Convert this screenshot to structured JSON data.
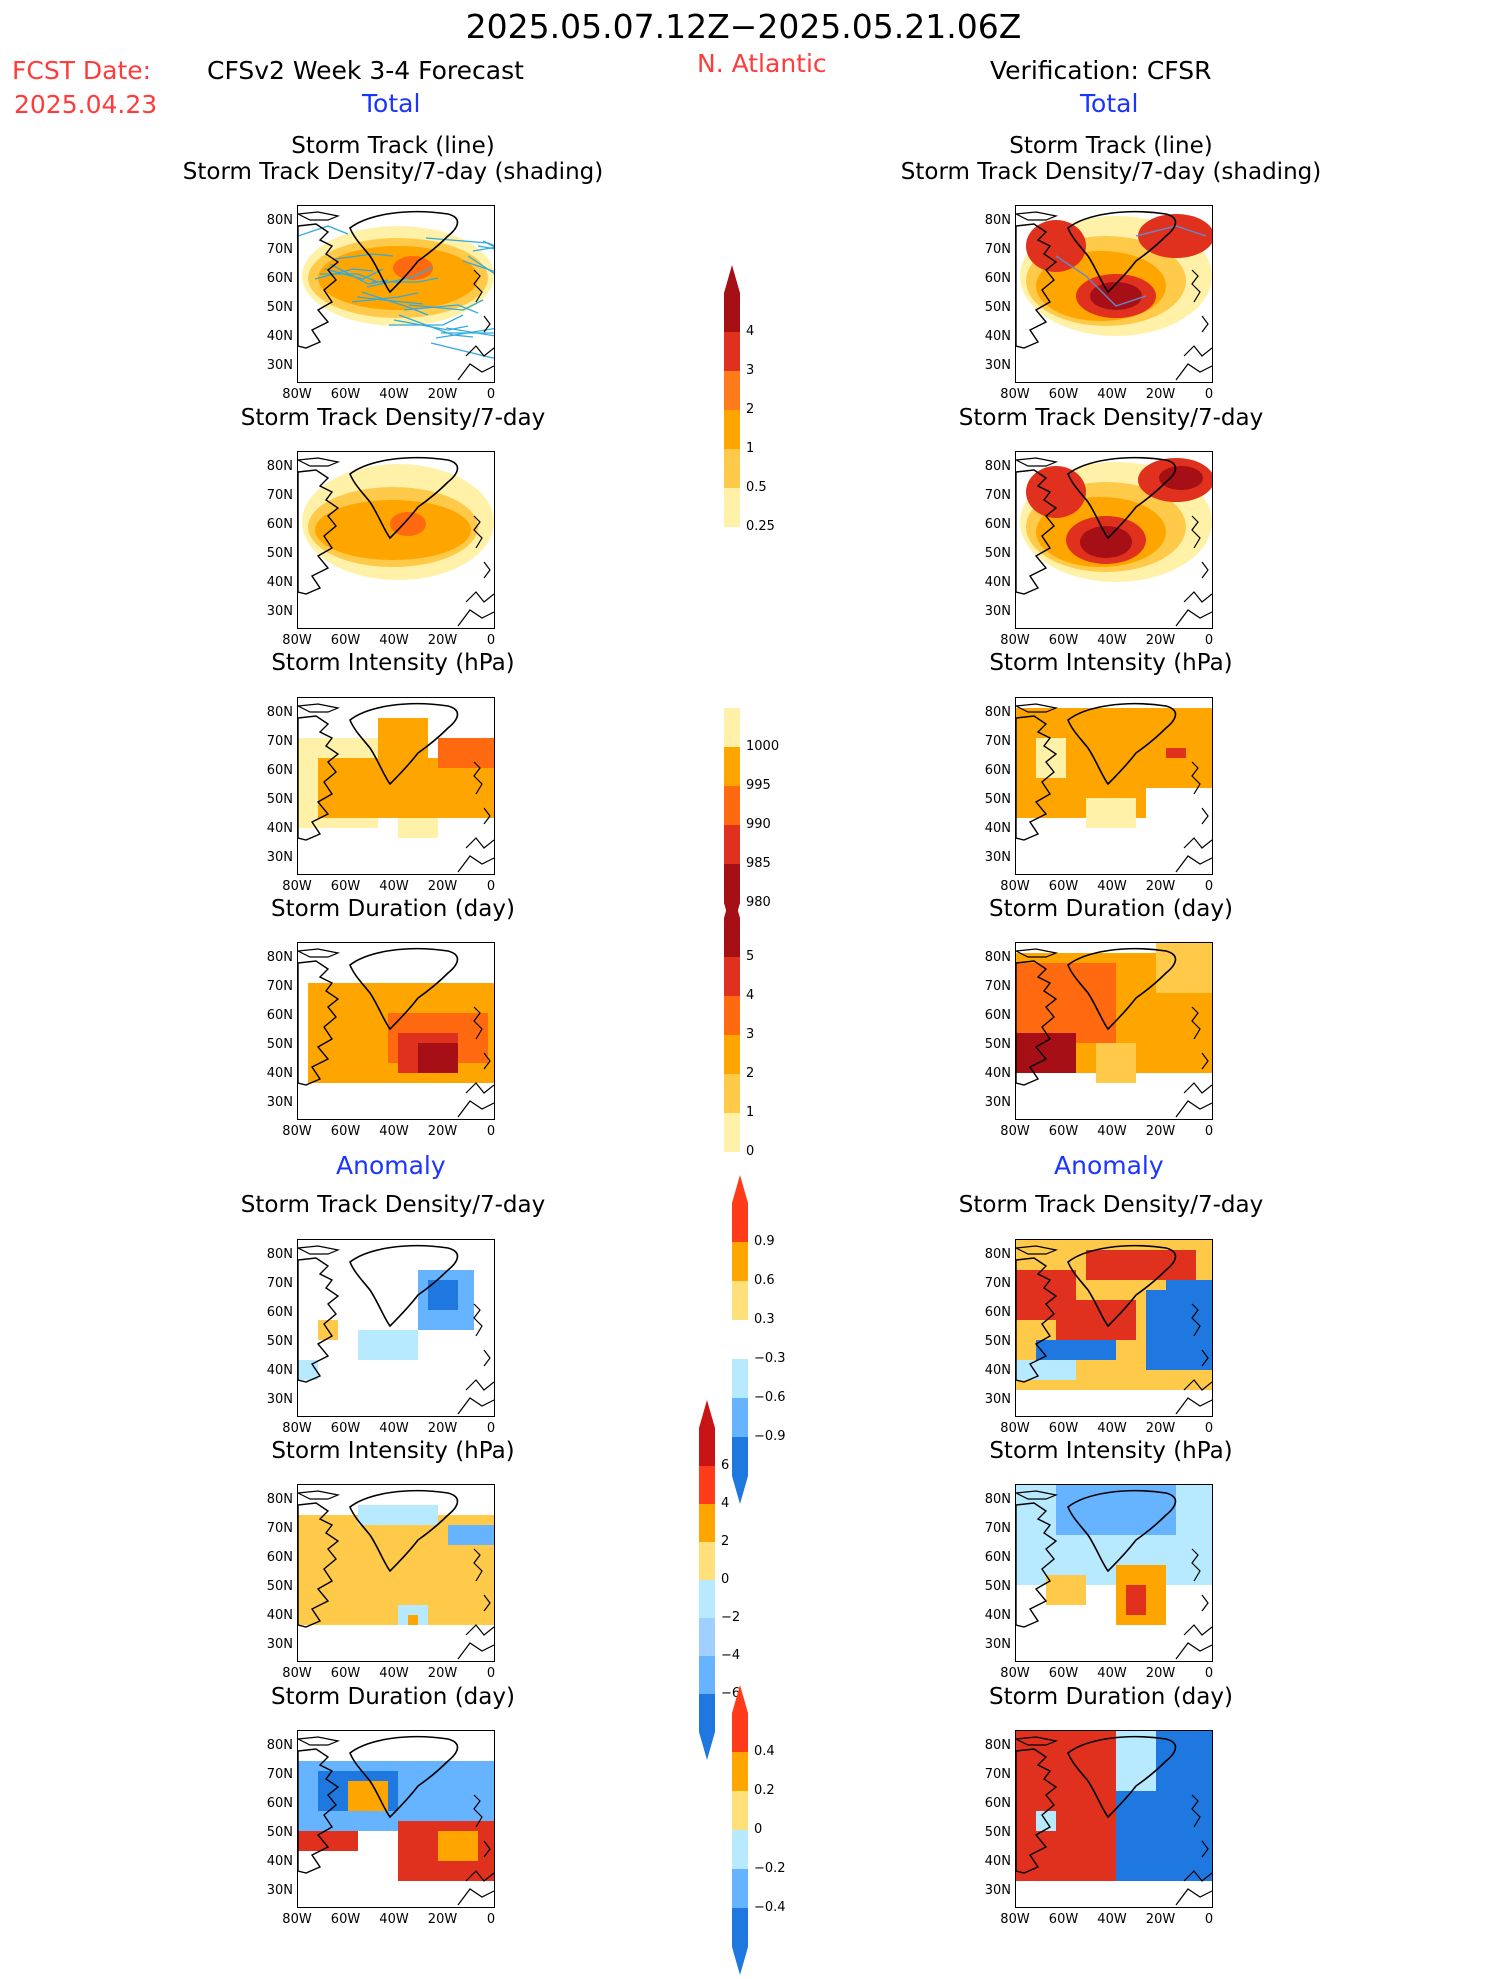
{
  "header": {
    "period": "2025.05.07.12Z−2025.05.21.06Z",
    "fcst_label": "FCST Date:",
    "fcst_date": "2025.04.23",
    "model": "CFSv2 Week 3-4 Forecast",
    "region": "N. Atlantic",
    "verification": "Verification: CFSR"
  },
  "sections": {
    "total": "Total",
    "anomaly": "Anomaly"
  },
  "titles": {
    "track_line": "Storm Track (line)",
    "track_shading": "Storm Track Density/7-day (shading)",
    "density": "Storm Track Density/7-day",
    "intensity": "Storm Intensity (hPa)",
    "duration": "Storm Duration (day)"
  },
  "axes": {
    "lat_labels": [
      "80N",
      "70N",
      "60N",
      "50N",
      "40N",
      "30N"
    ],
    "lon_labels": [
      "80W",
      "60W",
      "40W",
      "20W",
      "0"
    ]
  },
  "colorbars": {
    "density_total": {
      "levels": [
        "4",
        "3",
        "2",
        "1",
        "0.5",
        "0.25"
      ],
      "colors": [
        "#a50f15",
        "#e0301e",
        "#ff7a1a",
        "#ffa500",
        "#ffc94a",
        "#fff2a8"
      ]
    },
    "intensity_total": {
      "levels": [
        "1000",
        "995",
        "990",
        "985",
        "980"
      ],
      "colors": [
        "#fff2a8",
        "#ffa500",
        "#ff6a10",
        "#e0301e",
        "#a50f15"
      ]
    },
    "duration_total": {
      "levels": [
        "5",
        "4",
        "3",
        "2",
        "1",
        "0"
      ],
      "colors": [
        "#a50f15",
        "#e0301e",
        "#ff6a10",
        "#ffa500",
        "#ffc94a",
        "#fff2a8"
      ]
    },
    "density_anom": {
      "levels": [
        "0.9",
        "0.6",
        "0.3",
        "−0.3",
        "−0.6",
        "−0.9"
      ],
      "colors": [
        "#ff3c1a",
        "#ffa500",
        "#ffe07a",
        "#ffffff",
        "#b8eaff",
        "#66b3ff",
        "#1e78e0"
      ]
    },
    "intensity_anom": {
      "levels": [
        "6",
        "4",
        "2",
        "0",
        "−2",
        "−4",
        "−6"
      ],
      "colors": [
        "#c81414",
        "#ff3c1a",
        "#ffa500",
        "#ffe07a",
        "#b8eaff",
        "#9fd0ff",
        "#66b3ff",
        "#1e78e0"
      ]
    },
    "duration_anom": {
      "levels": [
        "0.4",
        "0.2",
        "0",
        "−0.2",
        "−0.4"
      ],
      "colors": [
        "#ff3c1a",
        "#ffa500",
        "#ffe07a",
        "#b8eaff",
        "#66b3ff",
        "#1e78e0"
      ]
    }
  },
  "palette": {
    "red_dark": "#a50f15",
    "red": "#e0301e",
    "orange_red": "#ff6a10",
    "orange": "#ffa500",
    "yellow": "#ffc94a",
    "pale_yellow": "#fff2a8",
    "light_blue": "#b8eaff",
    "mid_blue": "#66b3ff",
    "blue": "#1e78e0",
    "track_line": "#33aadd"
  }
}
